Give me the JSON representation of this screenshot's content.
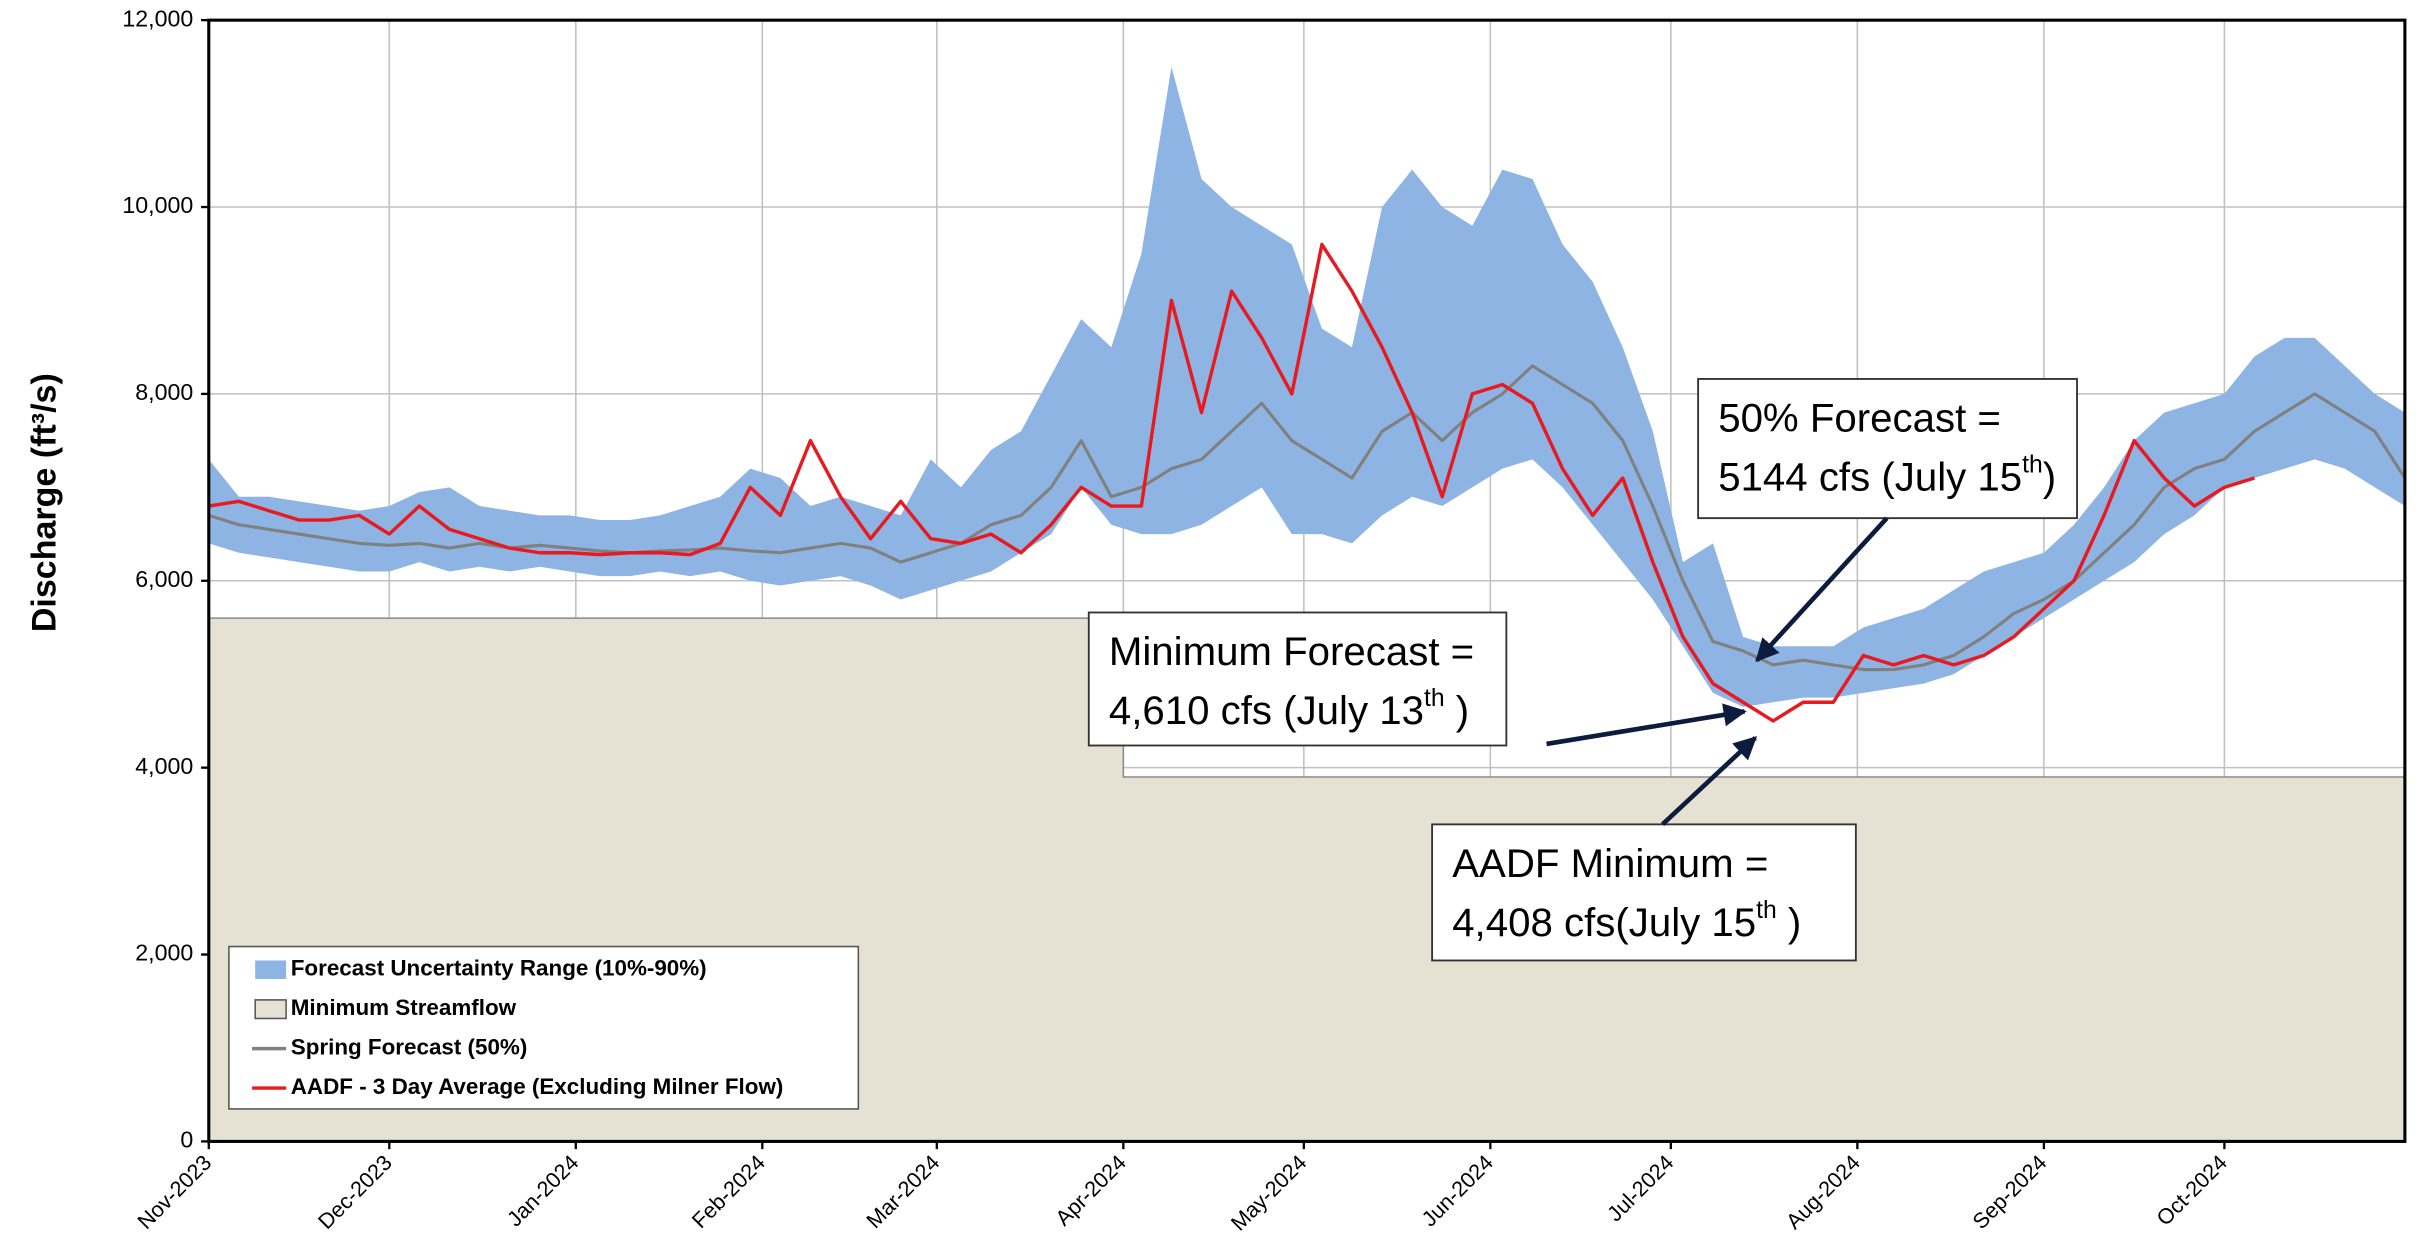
{
  "chart_data": {
    "type": "line",
    "ylabel": "Discharge (ft³/s)",
    "xlim": [
      0,
      365
    ],
    "xticks": [
      {
        "value": 0,
        "label": "Nov-2023"
      },
      {
        "value": 30,
        "label": "Dec-2023"
      },
      {
        "value": 61,
        "label": "Jan-2024"
      },
      {
        "value": 92,
        "label": "Feb-2024"
      },
      {
        "value": 121,
        "label": "Mar-2024"
      },
      {
        "value": 152,
        "label": "Apr-2024"
      },
      {
        "value": 182,
        "label": "May-2024"
      },
      {
        "value": 213,
        "label": "Jun-2024"
      },
      {
        "value": 243,
        "label": "Jul-2024"
      },
      {
        "value": 274,
        "label": "Aug-2024"
      },
      {
        "value": 305,
        "label": "Sep-2024"
      },
      {
        "value": 335,
        "label": "Oct-2024"
      }
    ],
    "ylim": [
      0,
      12000
    ],
    "yticks": [
      0,
      {
        "value": 2000,
        "label": "2,000"
      },
      {
        "value": 4000,
        "label": "4,000"
      },
      {
        "value": 6000,
        "label": "6,000"
      },
      {
        "value": 8000,
        "label": "8,000"
      },
      {
        "value": 10000,
        "label": "10,000"
      },
      {
        "value": 12000,
        "label": "12,000"
      }
    ],
    "grid": true,
    "legend": "lower left",
    "x": [
      0,
      5,
      10,
      15,
      20,
      25,
      30,
      35,
      40,
      45,
      50,
      55,
      60,
      65,
      70,
      75,
      80,
      85,
      90,
      95,
      100,
      105,
      110,
      115,
      120,
      125,
      130,
      135,
      140,
      145,
      150,
      155,
      160,
      165,
      170,
      175,
      180,
      185,
      190,
      195,
      200,
      205,
      210,
      215,
      220,
      225,
      230,
      235,
      240,
      245,
      250,
      255,
      260,
      265,
      270,
      275,
      280,
      285,
      290,
      295,
      300,
      305,
      310,
      315,
      320,
      325,
      330,
      335,
      340,
      345,
      350,
      355,
      360,
      365
    ],
    "series": [
      {
        "name": "Forecast Uncertainty Range (10%-90%)",
        "type": "range",
        "color": "#8db4e2",
        "upper": [
          7300,
          6900,
          6900,
          6850,
          6800,
          6750,
          6800,
          6950,
          7000,
          6800,
          6750,
          6700,
          6700,
          6650,
          6650,
          6700,
          6800,
          6900,
          7200,
          7100,
          6800,
          6900,
          6800,
          6700,
          7300,
          7000,
          7400,
          7600,
          8200,
          8800,
          8500,
          9500,
          11500,
          10300,
          10000,
          9800,
          9600,
          8700,
          8500,
          10000,
          10400,
          10000,
          9800,
          10400,
          10300,
          9600,
          9200,
          8500,
          7600,
          6200,
          6400,
          5400,
          5300,
          5300,
          5300,
          5500,
          5600,
          5700,
          5900,
          6100,
          6200,
          6300,
          6600,
          7000,
          7500,
          7800,
          7900,
          8000,
          8400,
          8600,
          8600,
          8300,
          8000,
          7800
        ],
        "lower": [
          6400,
          6300,
          6250,
          6200,
          6150,
          6100,
          6100,
          6200,
          6100,
          6150,
          6100,
          6150,
          6100,
          6050,
          6050,
          6100,
          6050,
          6100,
          6000,
          5950,
          6000,
          6050,
          5950,
          5800,
          5900,
          6000,
          6100,
          6300,
          6500,
          7000,
          6600,
          6500,
          6500,
          6600,
          6800,
          7000,
          6500,
          6500,
          6400,
          6700,
          6900,
          6800,
          7000,
          7200,
          7300,
          7000,
          6600,
          6200,
          5800,
          5300,
          4800,
          4650,
          4700,
          4750,
          4750,
          4800,
          4850,
          4900,
          5000,
          5200,
          5400,
          5600,
          5800,
          6000,
          6200,
          6500,
          6700,
          7000,
          7100,
          7200,
          7300,
          7200,
          7000,
          6800
        ]
      },
      {
        "name": "Minimum Streamflow",
        "type": "area",
        "color": "#e6e2d3",
        "x": [
          0,
          152,
          152,
          365
        ],
        "values": [
          5600,
          5600,
          3900,
          3900
        ]
      },
      {
        "name": "Spring Forecast (50%)",
        "type": "line",
        "color": "#808080",
        "values": [
          6700,
          6600,
          6550,
          6500,
          6450,
          6400,
          6380,
          6400,
          6350,
          6400,
          6350,
          6380,
          6350,
          6320,
          6300,
          6320,
          6330,
          6350,
          6320,
          6300,
          6350,
          6400,
          6350,
          6200,
          6300,
          6400,
          6600,
          6700,
          7000,
          7500,
          6900,
          7000,
          7200,
          7300,
          7600,
          7900,
          7500,
          7300,
          7100,
          7600,
          7800,
          7500,
          7800,
          8000,
          8300,
          8100,
          7900,
          7500,
          6800,
          6000,
          5350,
          5250,
          5100,
          5150,
          5100,
          5050,
          5050,
          5100,
          5200,
          5400,
          5650,
          5800,
          6000,
          6300,
          6600,
          7000,
          7200,
          7300,
          7600,
          7800,
          8000,
          7800,
          7600,
          7100
        ]
      },
      {
        "name": "AADF - 3 Day Average (Excluding Milner Flow)",
        "type": "line",
        "color": "#e8191f",
        "values": [
          6800,
          6850,
          6750,
          6650,
          6650,
          6700,
          6500,
          6800,
          6550,
          6450,
          6350,
          6300,
          6300,
          6280,
          6300,
          6300,
          6280,
          6400,
          7000,
          6700,
          7500,
          6900,
          6450,
          6850,
          6450,
          6400,
          6500,
          6300,
          6600,
          7000,
          6800,
          6800,
          9000,
          7800,
          9100,
          8600,
          8000,
          9600,
          9100,
          8500,
          7800,
          6900,
          8000,
          8100,
          7900,
          7200,
          6700,
          7100,
          6200,
          5400,
          4900,
          4700,
          4500,
          4700,
          4700,
          5200,
          5100,
          5200,
          5100,
          5200,
          5400,
          5700,
          6000,
          6700,
          7500,
          7100,
          6800,
          7000,
          7100,
          null,
          null,
          null,
          null,
          null
        ]
      }
    ],
    "annotations": [
      {
        "lines": [
          [
            {
              "text": "50% Forecast ="
            }
          ],
          [
            {
              "text": "5144 cfs (July 15"
            },
            {
              "text": "th",
              "sup": true
            },
            {
              "text": ")"
            }
          ]
        ]
      },
      {
        "lines": [
          [
            {
              "text": "Minimum Forecast ="
            }
          ],
          [
            {
              "text": "4,610 cfs (July 13"
            },
            {
              "text": "th",
              "sup": true
            },
            {
              "text": " )"
            }
          ]
        ]
      },
      {
        "lines": [
          [
            {
              "text": "AADF Minimum ="
            }
          ],
          [
            {
              "text": "4,408 cfs(July 15"
            },
            {
              "text": "th",
              "sup": true
            },
            {
              "text": " )"
            }
          ]
        ]
      }
    ]
  }
}
